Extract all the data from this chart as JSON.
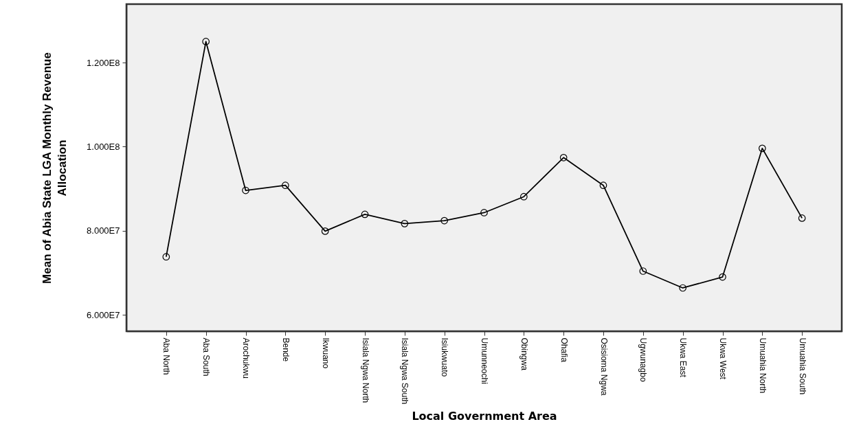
{
  "chart_data": {
    "type": "line",
    "xlabel": "Local Government Area",
    "ylabel": "Mean of Abia State LGA Monthly Revenue Allocation",
    "categories": [
      "Aba North",
      "Aba South",
      "Arochukwu",
      "Bende",
      "Ikwuano",
      "Isiala Ngwa North",
      "Isiala Ngwa South",
      "Isiukwuato",
      "Umunneochi",
      "Obingwa",
      "Ohafia",
      "Osisioma Ngwa",
      "Ugwunagbo",
      "Ukwa East",
      "Ukwa West",
      "Umuahia North",
      "Umuahia South"
    ],
    "series": [
      {
        "color": "#000000",
        "values": [
          73800000,
          125000000,
          89600000,
          90800000,
          79900000,
          83900000,
          81700000,
          82400000,
          84300000,
          88100000,
          97400000,
          90800000,
          70400000,
          66400000,
          69000000,
          99600000,
          83000000
        ]
      }
    ],
    "ylim": [
      56100000,
      133900000
    ],
    "yticks": [
      {
        "value": 60000000,
        "label": "6.000E7"
      },
      {
        "value": 80000000,
        "label": "8.000E7"
      },
      {
        "value": 100000000,
        "label": "1.000E8"
      },
      {
        "value": 120000000,
        "label": "1.200E8"
      }
    ],
    "grid": false,
    "marker": "circle",
    "line_style": "solid"
  }
}
